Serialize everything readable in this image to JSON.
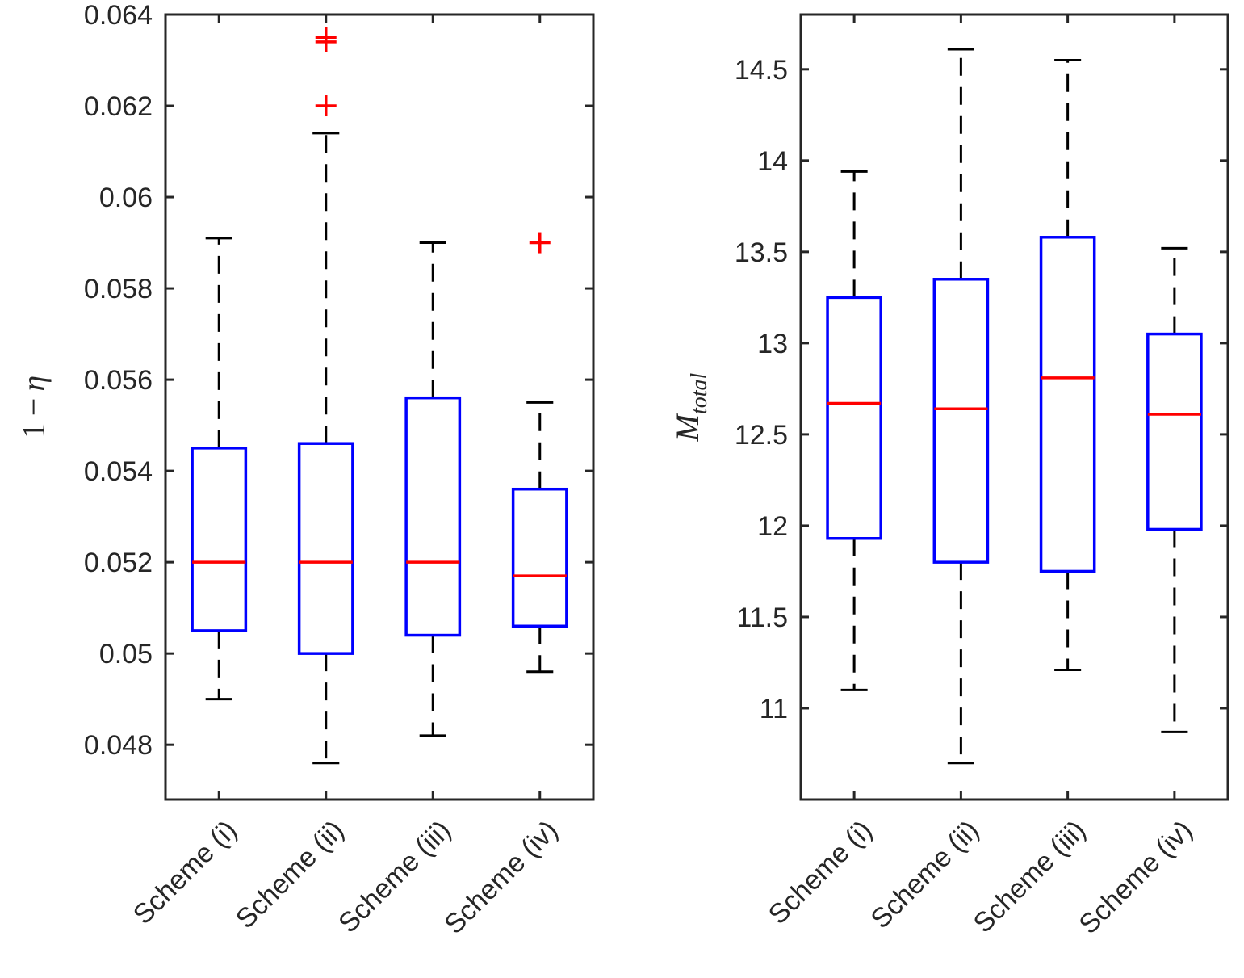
{
  "chart_data": [
    {
      "type": "box",
      "ylabel": "1 − η",
      "ylabel_parts": {
        "one": "1",
        "minus": "−",
        "eta": "η"
      },
      "ylim": [
        0.0468,
        0.064
      ],
      "yticks": [
        0.048,
        0.05,
        0.052,
        0.054,
        0.056,
        0.058,
        0.06,
        0.062,
        0.064
      ],
      "ytick_labels": [
        "0.048",
        "0.05",
        "0.052",
        "0.054",
        "0.056",
        "0.058",
        "0.06",
        "0.062",
        "0.064"
      ],
      "categories": [
        "Scheme (i)",
        "Scheme (ii)",
        "Scheme (iii)",
        "Scheme (iv)"
      ],
      "boxes": [
        {
          "whisker_low": 0.049,
          "q1": 0.0505,
          "median": 0.052,
          "q3": 0.0545,
          "whisker_high": 0.0591,
          "outliers": []
        },
        {
          "whisker_low": 0.0476,
          "q1": 0.05,
          "median": 0.052,
          "q3": 0.0546,
          "whisker_high": 0.0614,
          "outliers": [
            0.062,
            0.0634,
            0.0635
          ]
        },
        {
          "whisker_low": 0.0482,
          "q1": 0.0504,
          "median": 0.052,
          "q3": 0.0556,
          "whisker_high": 0.059,
          "outliers": []
        },
        {
          "whisker_low": 0.0496,
          "q1": 0.0506,
          "median": 0.0517,
          "q3": 0.0536,
          "whisker_high": 0.0555,
          "outliers": [
            0.059
          ]
        }
      ]
    },
    {
      "type": "box",
      "ylabel": "M_total",
      "ylabel_parts": {
        "main": "M",
        "sub": "total"
      },
      "ylim": [
        10.5,
        14.8
      ],
      "yticks": [
        11,
        11.5,
        12,
        12.5,
        13,
        13.5,
        14,
        14.5
      ],
      "ytick_labels": [
        "11",
        "11.5",
        "12",
        "12.5",
        "13",
        "13.5",
        "14",
        "14.5"
      ],
      "categories": [
        "Scheme (i)",
        "Scheme (ii)",
        "Scheme (iii)",
        "Scheme (iv)"
      ],
      "boxes": [
        {
          "whisker_low": 11.1,
          "q1": 11.93,
          "median": 12.67,
          "q3": 13.25,
          "whisker_high": 13.94,
          "outliers": []
        },
        {
          "whisker_low": 10.7,
          "q1": 11.8,
          "median": 12.64,
          "q3": 13.35,
          "whisker_high": 14.61,
          "outliers": []
        },
        {
          "whisker_low": 11.21,
          "q1": 11.75,
          "median": 12.81,
          "q3": 13.58,
          "whisker_high": 14.55,
          "outliers": []
        },
        {
          "whisker_low": 10.87,
          "q1": 11.98,
          "median": 12.61,
          "q3": 13.05,
          "whisker_high": 13.52,
          "outliers": []
        }
      ]
    }
  ],
  "colors": {
    "box": "#0000ff",
    "median": "#ff0000",
    "whisker": "#000000",
    "outlier": "#ff0000",
    "axis": "#262626"
  }
}
